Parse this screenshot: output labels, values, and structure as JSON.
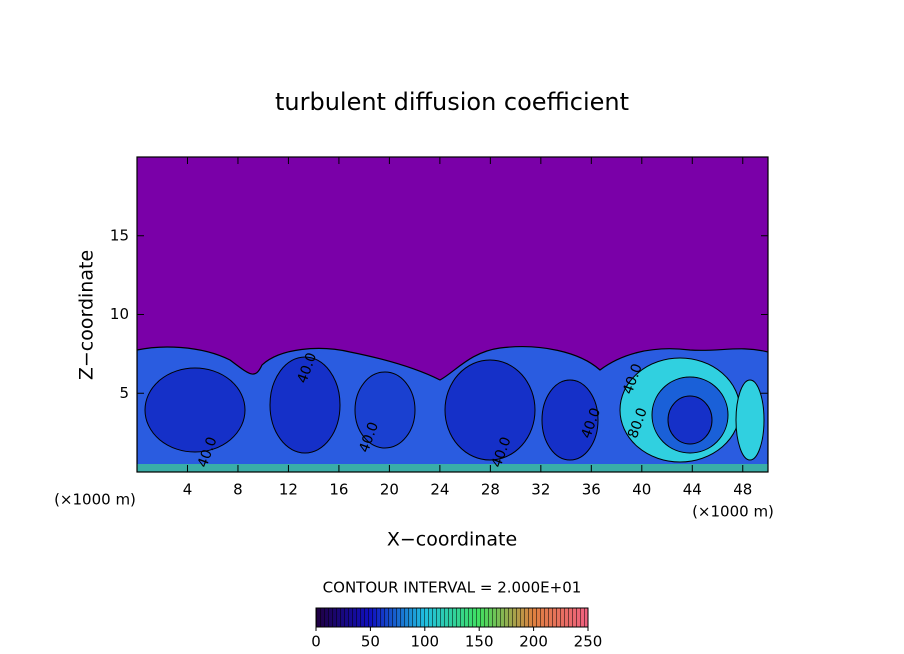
{
  "chart_data": {
    "type": "contour",
    "title": "turbulent diffusion coefficient",
    "x_label": "X−coordinate",
    "y_label": "Z−coordinate",
    "x_unit_left": "(×1000 m)",
    "x_unit_right": "(×1000 m)",
    "xlim": [
      0,
      50
    ],
    "ylim": [
      0,
      20
    ],
    "xticks": [
      4,
      8,
      12,
      16,
      20,
      24,
      28,
      32,
      36,
      40,
      44,
      48
    ],
    "yticks": [
      5,
      10,
      15
    ],
    "contour_labels": [
      {
        "x": 5.6,
        "y": 1.25,
        "value": 40,
        "label": "40.0"
      },
      {
        "x": 13.5,
        "y": 6.6,
        "value": 40,
        "label": "40.0"
      },
      {
        "x": 18.4,
        "y": 2.2,
        "value": 40,
        "label": "40.0"
      },
      {
        "x": 28.9,
        "y": 1.25,
        "value": 40,
        "label": "40.0"
      },
      {
        "x": 36.0,
        "y": 3.1,
        "value": 40,
        "label": "40.0"
      },
      {
        "x": 39.7,
        "y": 3.1,
        "value": 80,
        "label": "80.0"
      },
      {
        "x": 39.3,
        "y": 5.9,
        "value": 40,
        "label": "40.0"
      }
    ],
    "contour_interval": "CONTOUR INTERVAL = 2.000E+01",
    "colorbar_lim": [
      0,
      250
    ],
    "colorbar_ticks": [
      0,
      50,
      100,
      150,
      200,
      250
    ]
  }
}
